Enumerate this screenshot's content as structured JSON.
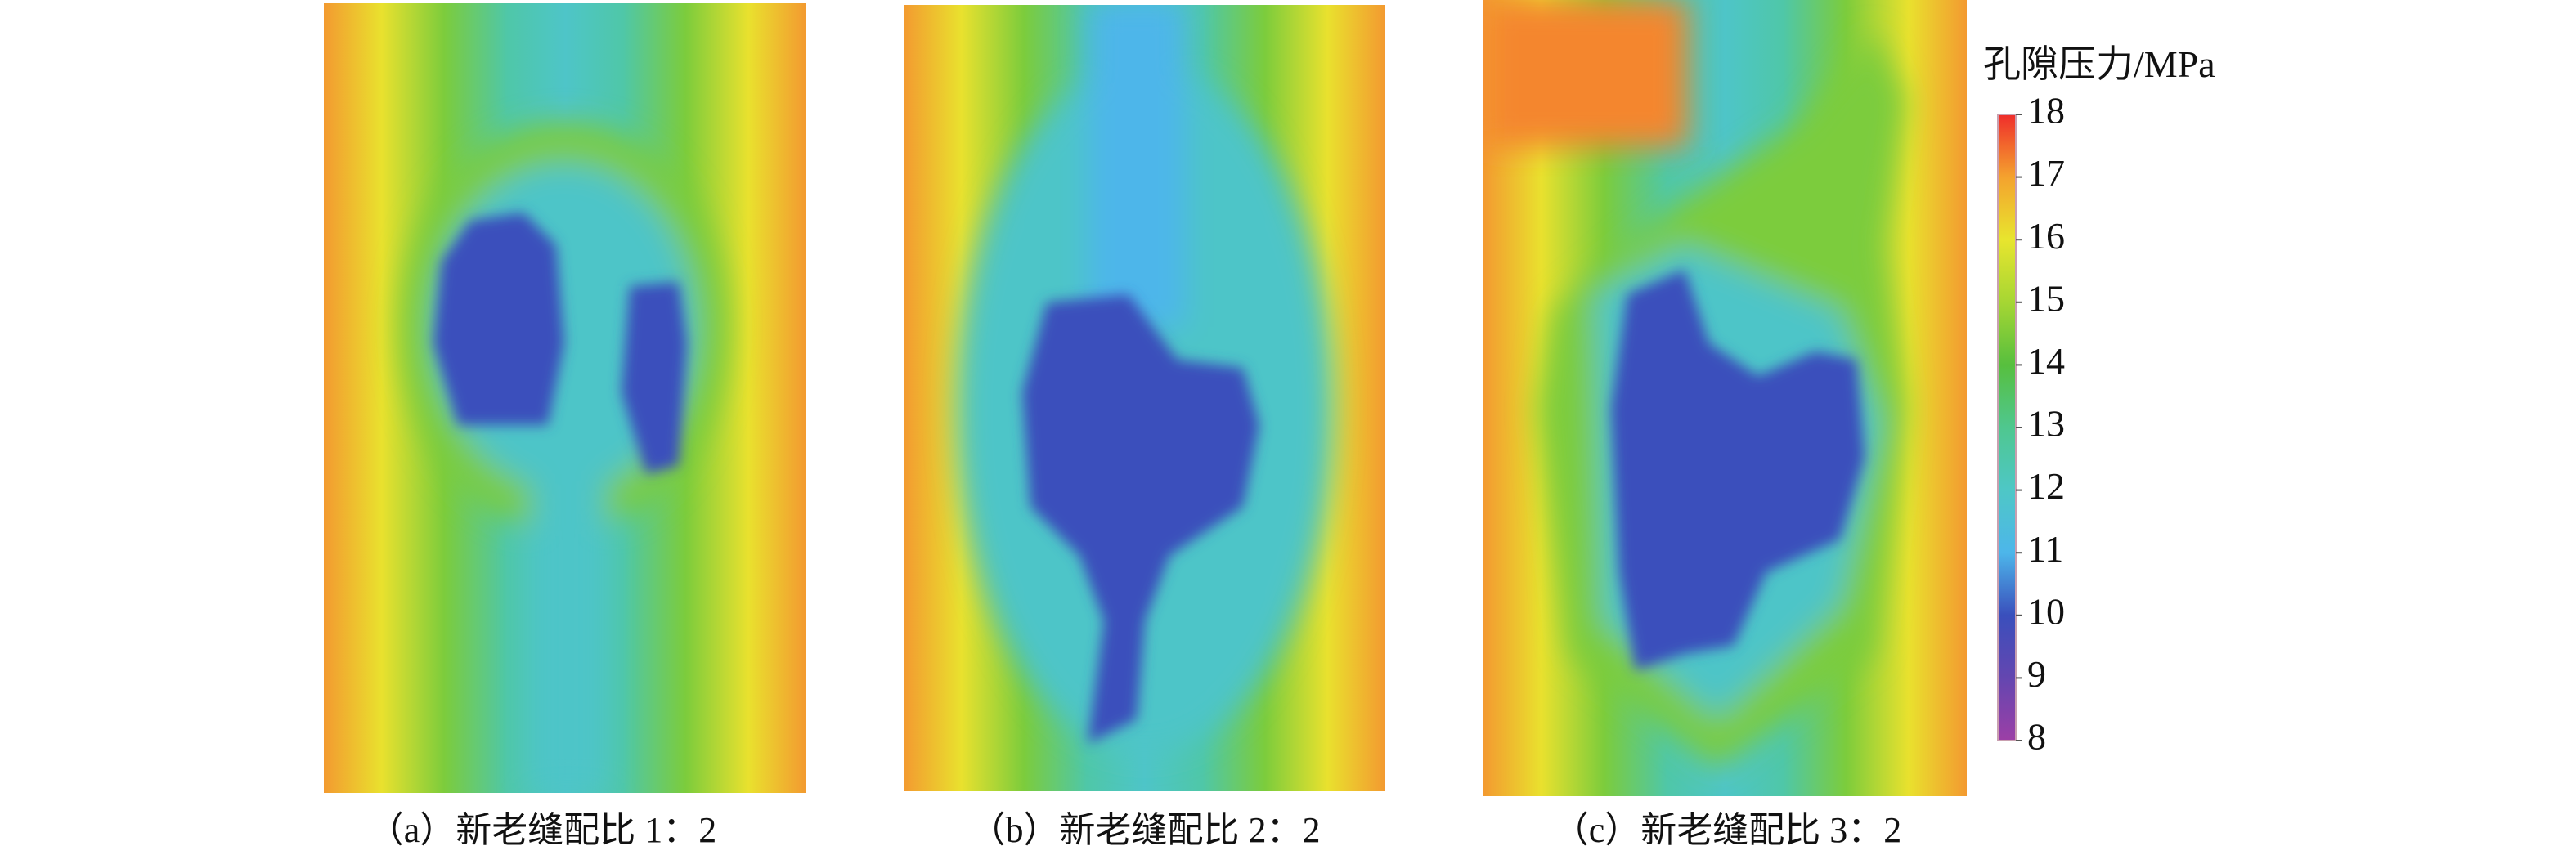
{
  "chart_data": {
    "type": "contour",
    "subplots": [
      {
        "caption": "（a）新老缝配比 1：2"
      },
      {
        "caption": "（b）新老缝配比 2：2"
      },
      {
        "caption": "（c）新老缝配比 3：2"
      }
    ],
    "colorbar": {
      "label": "孔隙压力/MPa",
      "lim": [
        8,
        18
      ],
      "ticks": [
        8,
        9,
        10,
        11,
        12,
        13,
        14,
        15,
        16,
        17,
        18
      ],
      "colors": [
        "#9c3fa6",
        "#6446b0",
        "#3a4fbc",
        "#4db6ea",
        "#4ec7c6",
        "#4fc78f",
        "#57bf3e",
        "#a6d633",
        "#e8e52e",
        "#f4a22e",
        "#ef2d2b"
      ]
    }
  }
}
